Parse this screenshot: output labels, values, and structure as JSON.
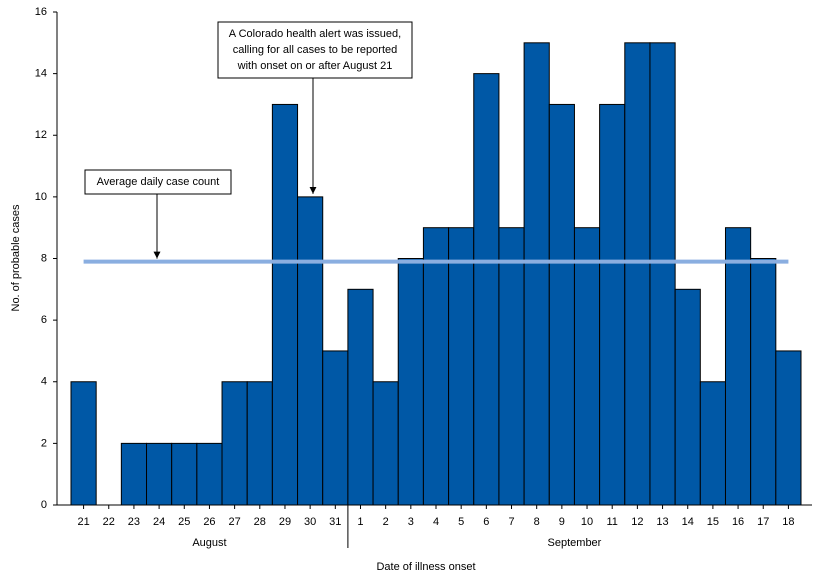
{
  "chart_data": {
    "type": "bar",
    "categories": [
      "21",
      "22",
      "23",
      "24",
      "25",
      "26",
      "27",
      "28",
      "29",
      "30",
      "31",
      "1",
      "2",
      "3",
      "4",
      "5",
      "6",
      "7",
      "8",
      "9",
      "10",
      "11",
      "12",
      "13",
      "14",
      "15",
      "16",
      "17",
      "18"
    ],
    "group_labels": [
      "August",
      "September"
    ],
    "values": [
      4,
      0,
      2,
      2,
      2,
      2,
      4,
      4,
      13,
      10,
      5,
      7,
      4,
      8,
      9,
      9,
      14,
      9,
      15,
      13,
      9,
      13,
      15,
      15,
      7,
      4,
      9,
      8,
      5
    ],
    "color": "#0058a6",
    "average": 7.9,
    "average_color": "#8aaee0",
    "xlabel": "Date of illness onset",
    "ylabel": "No. of probable cases",
    "ylim": [
      0,
      16
    ],
    "yticks": [
      0,
      2,
      4,
      6,
      8,
      10,
      12,
      14,
      16
    ],
    "grid": false,
    "annotations": [
      {
        "lines": [
          "Average daily case count"
        ]
      },
      {
        "lines": [
          "A Colorado health alert was issued,",
          "calling for all cases to be reported",
          "with onset on or after August 21"
        ]
      }
    ]
  }
}
